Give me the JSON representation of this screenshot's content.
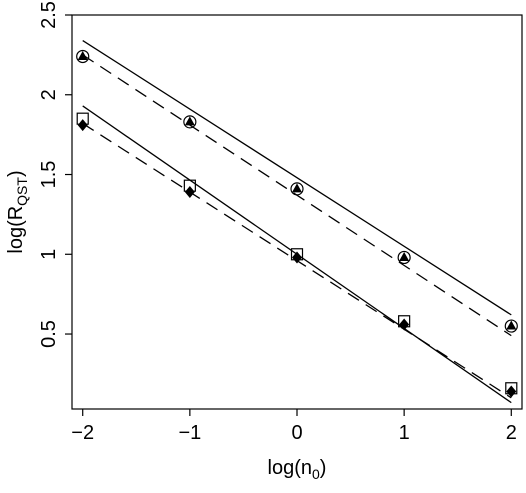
{
  "chart_data": {
    "type": "scatter",
    "xlabel": {
      "main": "log(n",
      "sub": "0",
      "close": ")"
    },
    "ylabel": {
      "main": "log(R",
      "sub": "QST",
      "close": ")"
    },
    "xlim": [
      -2.1,
      2.1
    ],
    "ylim": [
      0.03,
      2.5
    ],
    "xticks": [
      -2,
      -1,
      0,
      1,
      2
    ],
    "xtick_labels": [
      "−2",
      "−1",
      "0",
      "1",
      "2"
    ],
    "yticks": [
      0.5,
      1,
      1.5,
      2,
      2.5
    ],
    "ytick_labels": [
      "0.5",
      "1",
      "1.5",
      "2",
      "2.5"
    ],
    "grid": false,
    "series": [
      {
        "marker": "circle",
        "x": [
          -2,
          -1,
          0,
          1,
          2
        ],
        "y": [
          2.24,
          1.83,
          1.41,
          0.98,
          0.55
        ]
      },
      {
        "marker": "triangle-filled",
        "x": [
          -2,
          -1,
          0,
          1,
          2
        ],
        "y": [
          2.24,
          1.83,
          1.41,
          0.98,
          0.55
        ]
      },
      {
        "marker": "square-open",
        "x": [
          -2,
          -1,
          0,
          1,
          2
        ],
        "y": [
          1.85,
          1.43,
          1.0,
          0.58,
          0.16
        ]
      },
      {
        "marker": "diamond-filled",
        "x": [
          -2,
          -1,
          0,
          1,
          2
        ],
        "y": [
          1.81,
          1.39,
          0.98,
          0.56,
          0.14
        ]
      }
    ],
    "lines": [
      {
        "style": "solid",
        "x": [
          -2,
          2
        ],
        "y": [
          2.34,
          0.62
        ]
      },
      {
        "style": "dashed",
        "x": [
          -2,
          2
        ],
        "y": [
          2.25,
          0.49
        ]
      },
      {
        "style": "solid",
        "x": [
          -2,
          2
        ],
        "y": [
          1.93,
          0.07
        ]
      },
      {
        "style": "dashed",
        "x": [
          -2,
          2
        ],
        "y": [
          1.82,
          0.1
        ]
      }
    ]
  }
}
